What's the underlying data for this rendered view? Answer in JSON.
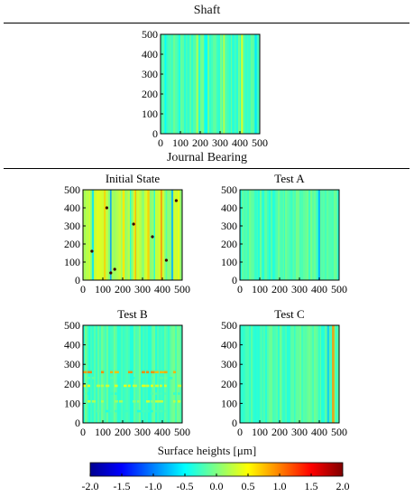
{
  "sections": {
    "shaft_title": "Shaft",
    "bearing_title": "Journal Bearing"
  },
  "chart_data": [
    {
      "type": "heatmap",
      "title": "",
      "x": [
        0,
        500
      ],
      "y": [
        0,
        500
      ],
      "xticks": [
        0,
        100,
        200,
        300,
        400,
        500
      ],
      "yticks": [
        0,
        100,
        200,
        300,
        400,
        500
      ],
      "xlim": [
        0,
        500
      ],
      "ylim": [
        0,
        500
      ],
      "pattern": "vertical-stripes",
      "stripe_columns": [
        25,
        60,
        95,
        140,
        185,
        230,
        270,
        320,
        365,
        410,
        445,
        480
      ],
      "stripe_values": [
        -0.5,
        -0.2,
        -0.4,
        -0.3,
        0.2,
        -0.5,
        -0.1,
        0.3,
        -0.4,
        0.4,
        -0.3,
        -0.6
      ],
      "typical_value": -0.2
    },
    {
      "type": "heatmap",
      "title": "Initial State",
      "xticks": [
        0,
        100,
        200,
        300,
        400,
        500
      ],
      "yticks": [
        0,
        100,
        200,
        300,
        400,
        500
      ],
      "xlim": [
        0,
        500
      ],
      "ylim": [
        0,
        500
      ],
      "pattern": "vertical-stripes",
      "stripe_columns": [
        20,
        50,
        75,
        110,
        140,
        175,
        205,
        240,
        265,
        300,
        330,
        360,
        395,
        420,
        450,
        480
      ],
      "stripe_values": [
        0.3,
        -0.6,
        0.4,
        0.7,
        -0.9,
        0.2,
        0.6,
        -0.4,
        0.8,
        0.0,
        0.7,
        -0.5,
        0.9,
        -0.2,
        -0.8,
        0.5
      ],
      "pits": [
        [
          45,
          160
        ],
        [
          160,
          60
        ],
        [
          120,
          400
        ],
        [
          350,
          240
        ],
        [
          255,
          310
        ],
        [
          420,
          110
        ],
        [
          470,
          440
        ],
        [
          140,
          40
        ]
      ],
      "typical_value": 0.2
    },
    {
      "type": "heatmap",
      "title": "Test A",
      "xticks": [
        0,
        100,
        200,
        300,
        400,
        500
      ],
      "yticks": [
        0,
        100,
        200,
        300,
        400,
        500
      ],
      "xlim": [
        0,
        500
      ],
      "ylim": [
        0,
        500
      ],
      "pattern": "vertical-stripes",
      "stripe_columns": [
        30,
        80,
        130,
        170,
        220,
        260,
        310,
        350,
        400,
        450
      ],
      "stripe_values": [
        -0.2,
        -0.3,
        -0.1,
        -0.4,
        -0.1,
        -0.3,
        -0.2,
        -0.3,
        -0.8,
        -0.2
      ],
      "typical_value": -0.2
    },
    {
      "type": "heatmap",
      "title": "Test B",
      "xticks": [
        0,
        100,
        200,
        300,
        400,
        500
      ],
      "yticks": [
        0,
        100,
        200,
        300,
        400,
        500
      ],
      "xlim": [
        0,
        500
      ],
      "ylim": [
        0,
        500
      ],
      "pattern": "horizontal-bands",
      "band_rows": [
        60,
        110,
        150,
        190,
        230,
        260
      ],
      "band_values": [
        -0.3,
        0.2,
        -0.3,
        0.4,
        -0.2,
        0.9
      ],
      "typical_value": -0.2
    },
    {
      "type": "heatmap",
      "title": "Test C",
      "xticks": [
        0,
        100,
        200,
        300,
        400,
        500
      ],
      "yticks": [
        0,
        100,
        200,
        300,
        400,
        500
      ],
      "xlim": [
        0,
        500
      ],
      "ylim": [
        0,
        500
      ],
      "pattern": "vertical-stripes",
      "stripe_columns": [
        40,
        100,
        160,
        220,
        280,
        340,
        400,
        445,
        470
      ],
      "stripe_values": [
        -0.2,
        -0.3,
        -0.1,
        -0.3,
        -0.2,
        -0.1,
        -0.3,
        -0.7,
        0.9
      ],
      "typical_value": -0.2
    }
  ],
  "colorbar": {
    "label": "Surface heights [μm]",
    "min": -2.0,
    "max": 2.0,
    "ticks": [
      "-2.0",
      "-1.5",
      "-1.0",
      "-0.5",
      "0.0",
      "0.5",
      "1.0",
      "1.5",
      "2.0"
    ],
    "colors": [
      "#00008f",
      "#0000ff",
      "#0080ff",
      "#00ffff",
      "#80ff80",
      "#ffff00",
      "#ff8000",
      "#ff0000",
      "#800000"
    ]
  }
}
